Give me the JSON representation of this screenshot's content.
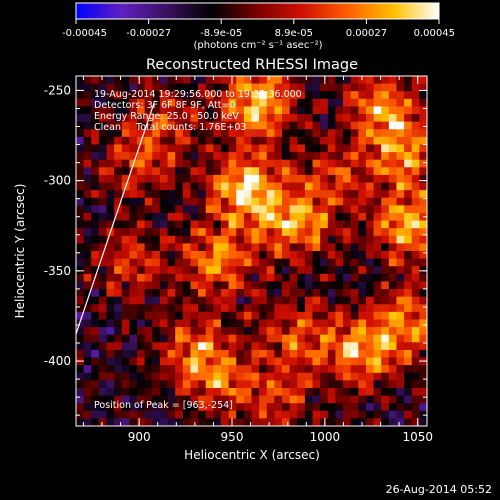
{
  "colorbar": {
    "tick_labels": [
      "-0.00045",
      "-0.00027",
      "-8.9e-05",
      "8.9e-05",
      "0.00027",
      "0.00045"
    ],
    "unit_label": "(photons cm⁻² s⁻¹ asec⁻²)",
    "stops": [
      "#0000ff",
      "#6020c0",
      "#3a1060",
      "#000000",
      "#7a0000",
      "#d01000",
      "#ff6000",
      "#ffc000",
      "#ffffff"
    ]
  },
  "chart_data": {
    "type": "heatmap",
    "title": "Reconstructed RHESSI Image",
    "xlabel": "Heliocentric X (arcsec)",
    "ylabel": "Heliocentric Y (arcsec)",
    "xlim": [
      866,
      1055
    ],
    "ylim": [
      -436,
      -242
    ],
    "x_ticks": [
      900,
      950,
      1000,
      1050
    ],
    "y_ticks": [
      -250,
      -300,
      -350,
      -400
    ],
    "annotations": [
      "19-Aug-2014 19:29:56.000 to 19:32:36.000",
      "Detectors: 3F 6F 8F 9F, Att=0",
      "Energy Range: 25.0 - 50.0 keV",
      "Clean     Total counts: 1.76E+03"
    ],
    "peak_label": "Position of Peak = [963,-254]",
    "peak": {
      "x": 963,
      "y": -254
    },
    "limb_line": [
      [
        866,
        -385
      ],
      [
        908,
        -257
      ]
    ],
    "sources": [
      {
        "x": 958,
        "y": -305,
        "strength": 1.0
      },
      {
        "x": 963,
        "y": -256,
        "strength": 0.95
      },
      {
        "x": 985,
        "y": -325,
        "strength": 0.75
      },
      {
        "x": 942,
        "y": -345,
        "strength": 0.7
      },
      {
        "x": 1045,
        "y": -325,
        "strength": 0.85
      },
      {
        "x": 1043,
        "y": -285,
        "strength": 0.7
      },
      {
        "x": 1030,
        "y": -260,
        "strength": 0.7
      },
      {
        "x": 1005,
        "y": -298,
        "strength": 0.45
      },
      {
        "x": 1020,
        "y": -395,
        "strength": 0.8
      },
      {
        "x": 1047,
        "y": -378,
        "strength": 0.7
      },
      {
        "x": 930,
        "y": -395,
        "strength": 0.65
      },
      {
        "x": 985,
        "y": -385,
        "strength": 0.55
      },
      {
        "x": 900,
        "y": -292,
        "strength": 0.45
      },
      {
        "x": 895,
        "y": -345,
        "strength": 0.5
      },
      {
        "x": 912,
        "y": -268,
        "strength": 0.45
      },
      {
        "x": 975,
        "y": -420,
        "strength": 0.45
      },
      {
        "x": 945,
        "y": -412,
        "strength": 0.45
      }
    ]
  },
  "timestamp": "26-Aug-2014 05:52"
}
